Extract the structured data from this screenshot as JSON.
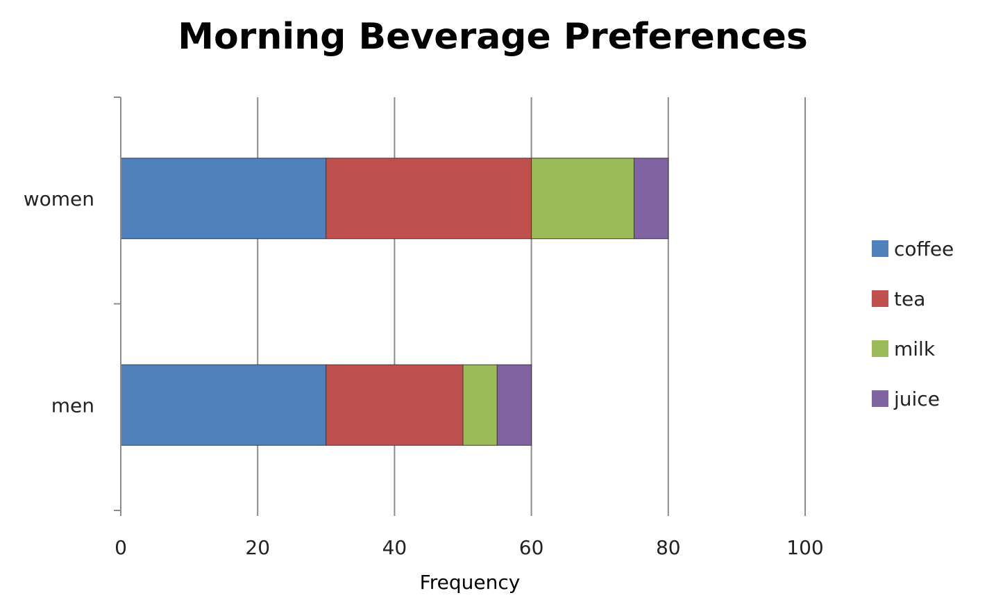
{
  "chart_data": {
    "type": "bar",
    "orientation": "horizontal",
    "stacked": true,
    "title": "Morning Beverage Preferences",
    "xlabel": "Frequency",
    "ylabel": "",
    "categories": [
      "women",
      "men"
    ],
    "series": [
      {
        "name": "coffee",
        "values": [
          30,
          30
        ],
        "color": "#4f81bd"
      },
      {
        "name": "tea",
        "values": [
          30,
          20
        ],
        "color": "#c0504d"
      },
      {
        "name": "milk",
        "values": [
          15,
          5
        ],
        "color": "#9bbb59"
      },
      {
        "name": "juice",
        "values": [
          5,
          5
        ],
        "color": "#8064a2"
      }
    ],
    "xlim": [
      0,
      100
    ],
    "xticks": [
      "0",
      "20",
      "40",
      "60",
      "80",
      "100"
    ],
    "grid": true,
    "legend_position": "right"
  }
}
